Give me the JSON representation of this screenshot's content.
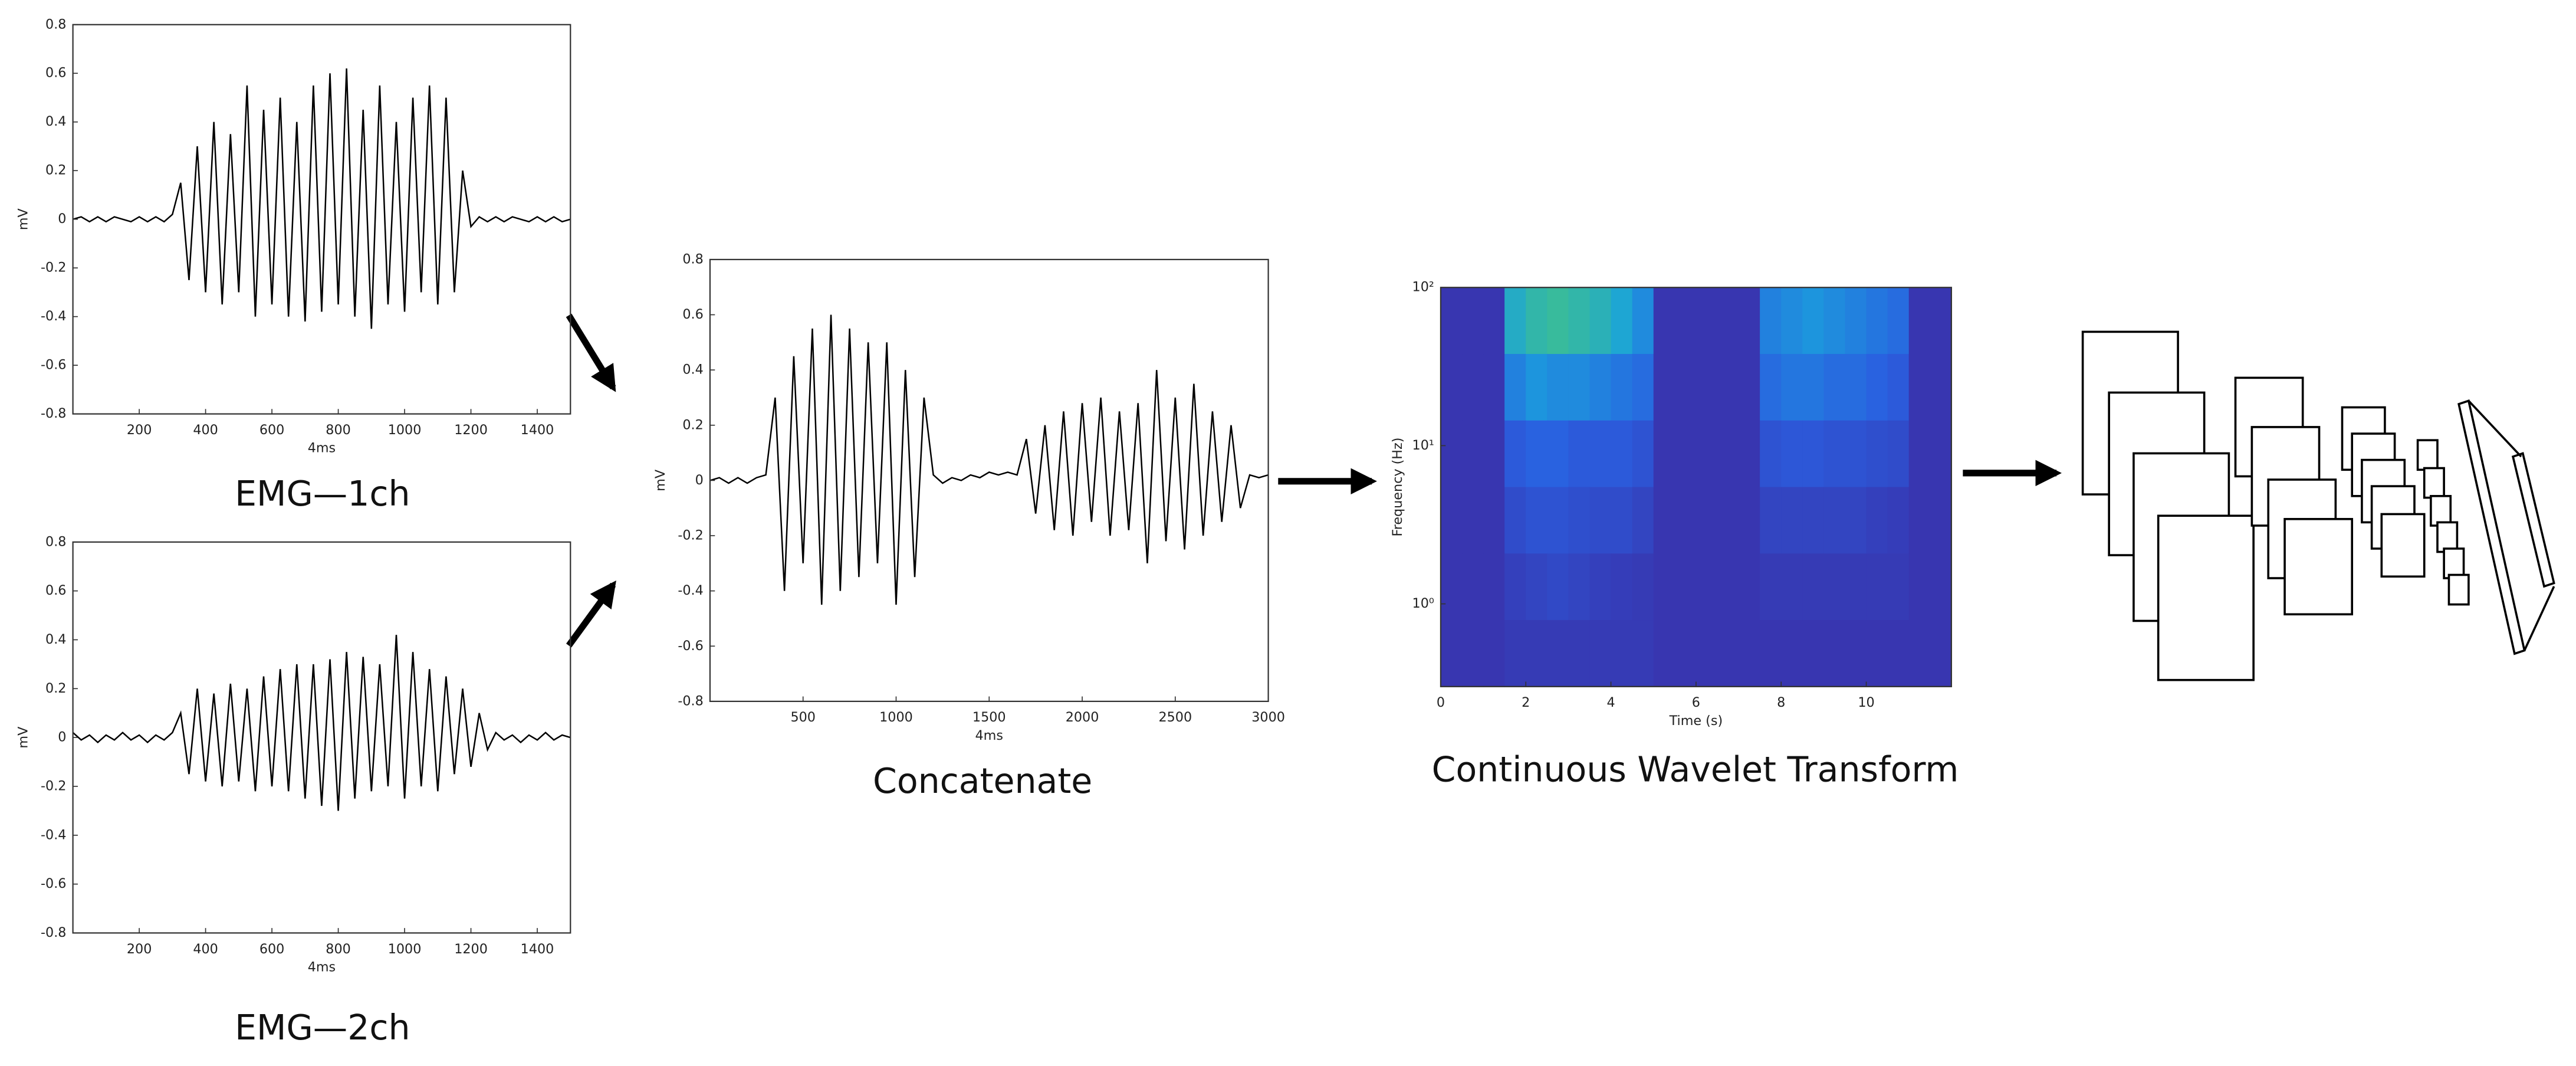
{
  "chart_data": [
    {
      "type": "line",
      "caption": "EMG—1ch",
      "xlabel": "4ms",
      "ylabel": "mV",
      "color": "#000000",
      "xlim": [
        0,
        1500
      ],
      "xticks": [
        200,
        400,
        600,
        800,
        1000,
        1200,
        1400
      ],
      "ylim": [
        -0.8,
        0.8
      ],
      "yticks": [
        -0.8,
        -0.6,
        -0.4,
        -0.2,
        0,
        0.2,
        0.4,
        0.6,
        0.8
      ],
      "x": [
        0,
        25,
        50,
        75,
        100,
        125,
        150,
        175,
        200,
        225,
        250,
        275,
        300,
        325,
        350,
        375,
        400,
        425,
        450,
        475,
        500,
        525,
        550,
        575,
        600,
        625,
        650,
        675,
        700,
        725,
        750,
        775,
        800,
        825,
        850,
        875,
        900,
        925,
        950,
        975,
        1000,
        1025,
        1050,
        1075,
        1100,
        1125,
        1150,
        1175,
        1200,
        1225,
        1250,
        1275,
        1300,
        1325,
        1350,
        1375,
        1400,
        1425,
        1450,
        1475,
        1500
      ],
      "values": [
        0,
        0.01,
        -0.01,
        0.01,
        -0.01,
        0.01,
        0,
        -0.01,
        0.01,
        -0.01,
        0.01,
        -0.01,
        0.02,
        0.15,
        -0.25,
        0.3,
        -0.3,
        0.4,
        -0.35,
        0.35,
        -0.3,
        0.55,
        -0.4,
        0.45,
        -0.35,
        0.5,
        -0.4,
        0.4,
        -0.42,
        0.55,
        -0.38,
        0.6,
        -0.35,
        0.62,
        -0.4,
        0.45,
        -0.45,
        0.55,
        -0.35,
        0.4,
        -0.38,
        0.5,
        -0.3,
        0.55,
        -0.35,
        0.5,
        -0.3,
        0.2,
        -0.03,
        0.01,
        -0.01,
        0.01,
        -0.01,
        0.01,
        0,
        -0.01,
        0.01,
        -0.01,
        0.01,
        -0.01,
        0
      ]
    },
    {
      "type": "line",
      "caption": "EMG—2ch",
      "xlabel": "4ms",
      "ylabel": "mV",
      "color": "#000000",
      "xlim": [
        0,
        1500
      ],
      "xticks": [
        200,
        400,
        600,
        800,
        1000,
        1200,
        1400
      ],
      "ylim": [
        -0.8,
        0.8
      ],
      "yticks": [
        -0.8,
        -0.6,
        -0.4,
        -0.2,
        0,
        0.2,
        0.4,
        0.6,
        0.8
      ],
      "x": [
        0,
        25,
        50,
        75,
        100,
        125,
        150,
        175,
        200,
        225,
        250,
        275,
        300,
        325,
        350,
        375,
        400,
        425,
        450,
        475,
        500,
        525,
        550,
        575,
        600,
        625,
        650,
        675,
        700,
        725,
        750,
        775,
        800,
        825,
        850,
        875,
        900,
        925,
        950,
        975,
        1000,
        1025,
        1050,
        1075,
        1100,
        1125,
        1150,
        1175,
        1200,
        1225,
        1250,
        1275,
        1300,
        1325,
        1350,
        1375,
        1400,
        1425,
        1450,
        1475,
        1500
      ],
      "values": [
        0.02,
        -0.01,
        0.01,
        -0.02,
        0.01,
        -0.01,
        0.02,
        -0.01,
        0.01,
        -0.02,
        0.01,
        -0.01,
        0.02,
        0.1,
        -0.15,
        0.2,
        -0.18,
        0.18,
        -0.2,
        0.22,
        -0.18,
        0.2,
        -0.22,
        0.25,
        -0.2,
        0.28,
        -0.22,
        0.3,
        -0.25,
        0.3,
        -0.28,
        0.32,
        -0.3,
        0.35,
        -0.25,
        0.33,
        -0.22,
        0.3,
        -0.2,
        0.42,
        -0.25,
        0.35,
        -0.2,
        0.28,
        -0.22,
        0.25,
        -0.15,
        0.2,
        -0.12,
        0.1,
        -0.05,
        0.02,
        -0.01,
        0.01,
        -0.02,
        0.01,
        -0.01,
        0.02,
        -0.01,
        0.01,
        0
      ]
    },
    {
      "type": "line",
      "caption": "Concatenate",
      "xlabel": "4ms",
      "ylabel": "mV",
      "color": "#000000",
      "xlim": [
        0,
        3000
      ],
      "xticks": [
        500,
        1000,
        1500,
        2000,
        2500,
        3000
      ],
      "ylim": [
        -0.8,
        0.8
      ],
      "yticks": [
        -0.8,
        -0.6,
        -0.4,
        -0.2,
        0,
        0.2,
        0.4,
        0.6,
        0.8
      ],
      "x": [
        0,
        50,
        100,
        150,
        200,
        250,
        300,
        350,
        400,
        450,
        500,
        550,
        600,
        650,
        700,
        750,
        800,
        850,
        900,
        950,
        1000,
        1050,
        1100,
        1150,
        1200,
        1250,
        1300,
        1350,
        1400,
        1450,
        1500,
        1550,
        1600,
        1650,
        1700,
        1750,
        1800,
        1850,
        1900,
        1950,
        2000,
        2050,
        2100,
        2150,
        2200,
        2250,
        2300,
        2350,
        2400,
        2450,
        2500,
        2550,
        2600,
        2650,
        2700,
        2750,
        2800,
        2850,
        2900,
        2950,
        3000
      ],
      "values": [
        0,
        0.01,
        -0.01,
        0.01,
        -0.01,
        0.01,
        0.02,
        0.3,
        -0.4,
        0.45,
        -0.3,
        0.55,
        -0.45,
        0.6,
        -0.4,
        0.55,
        -0.35,
        0.5,
        -0.3,
        0.5,
        -0.45,
        0.4,
        -0.35,
        0.3,
        0.02,
        -0.01,
        0.01,
        0,
        0.02,
        0.01,
        0.03,
        0.02,
        0.03,
        0.02,
        0.15,
        -0.12,
        0.2,
        -0.18,
        0.25,
        -0.2,
        0.28,
        -0.15,
        0.3,
        -0.2,
        0.25,
        -0.18,
        0.28,
        -0.3,
        0.4,
        -0.22,
        0.3,
        -0.25,
        0.35,
        -0.2,
        0.25,
        -0.15,
        0.2,
        -0.1,
        0.02,
        0.01,
        0.02
      ]
    },
    {
      "type": "heatmap",
      "caption": "Continuous Wavelet Transform",
      "xlabel": "Time (s)",
      "ylabel": "Frequency (Hz)",
      "xlim": [
        0,
        12
      ],
      "xticks": [
        0,
        2,
        4,
        6,
        8,
        10
      ],
      "yscale": "log",
      "ylim": [
        0.3,
        100
      ],
      "yticks": [
        {
          "value": 1,
          "label": "10⁰"
        },
        {
          "value": 10,
          "label": "10¹"
        },
        {
          "value": 100,
          "label": "10²"
        }
      ],
      "zlim": [
        0,
        1
      ],
      "colormap": [
        "#3a2fa8",
        "#2a5fe0",
        "#1aa2dc",
        "#45c680"
      ],
      "z": [
        [
          0.05,
          0.05,
          0.05,
          0.75,
          0.85,
          0.9,
          0.85,
          0.8,
          0.7,
          0.55,
          0.05,
          0.05,
          0.05,
          0.05,
          0.05,
          0.5,
          0.55,
          0.6,
          0.55,
          0.5,
          0.45,
          0.4,
          0.05,
          0.05
        ],
        [
          0.05,
          0.05,
          0.05,
          0.5,
          0.6,
          0.55,
          0.55,
          0.5,
          0.45,
          0.4,
          0.05,
          0.05,
          0.05,
          0.05,
          0.05,
          0.4,
          0.45,
          0.45,
          0.4,
          0.4,
          0.35,
          0.3,
          0.05,
          0.05
        ],
        [
          0.05,
          0.05,
          0.05,
          0.3,
          0.35,
          0.35,
          0.3,
          0.3,
          0.3,
          0.25,
          0.05,
          0.05,
          0.05,
          0.05,
          0.05,
          0.25,
          0.28,
          0.28,
          0.25,
          0.25,
          0.22,
          0.2,
          0.05,
          0.05
        ],
        [
          0.05,
          0.05,
          0.05,
          0.2,
          0.25,
          0.25,
          0.22,
          0.2,
          0.2,
          0.15,
          0.05,
          0.05,
          0.05,
          0.05,
          0.05,
          0.15,
          0.15,
          0.15,
          0.15,
          0.15,
          0.12,
          0.1,
          0.05,
          0.05
        ],
        [
          0.05,
          0.05,
          0.05,
          0.12,
          0.15,
          0.18,
          0.15,
          0.12,
          0.1,
          0.08,
          0.05,
          0.05,
          0.05,
          0.05,
          0.05,
          0.08,
          0.08,
          0.08,
          0.08,
          0.08,
          0.08,
          0.08,
          0.05,
          0.05
        ],
        [
          0.05,
          0.05,
          0.05,
          0.08,
          0.08,
          0.08,
          0.08,
          0.08,
          0.08,
          0.08,
          0.05,
          0.05,
          0.05,
          0.05,
          0.05,
          0.05,
          0.05,
          0.05,
          0.05,
          0.05,
          0.05,
          0.05,
          0.05,
          0.05
        ]
      ]
    }
  ]
}
